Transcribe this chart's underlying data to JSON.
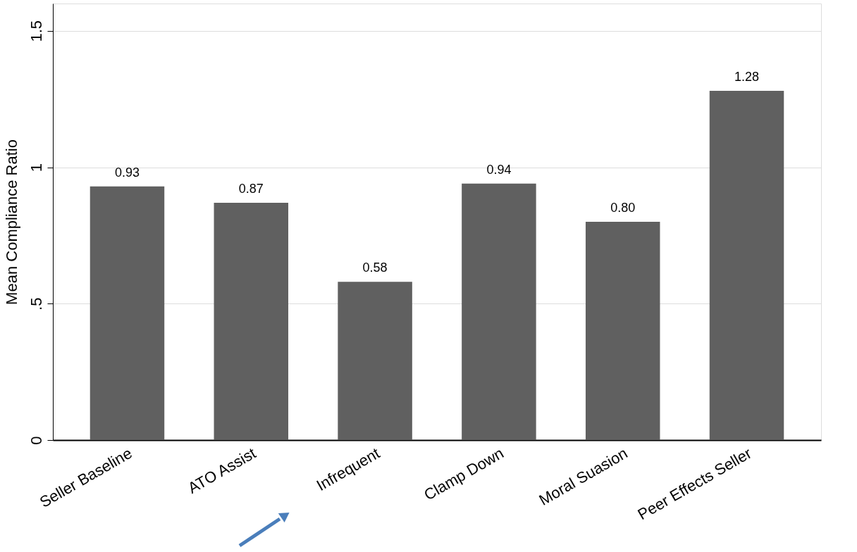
{
  "chart_data": {
    "type": "bar",
    "ylabel": "Mean Compliance Ratio",
    "categories": [
      "Seller Baseline",
      "ATO Assist",
      "Infrequent",
      "Clamp Down",
      "Moral Suasion",
      "Peer Effects Seller"
    ],
    "values": [
      0.93,
      0.87,
      0.58,
      0.94,
      0.8,
      1.28
    ],
    "value_labels": [
      "0.93",
      "0.87",
      "0.58",
      "0.94",
      "0.80",
      "1.28"
    ],
    "color": "#606060",
    "ylim": [
      0,
      1.6
    ],
    "yticks": [
      0,
      {
        "value": 0.5,
        "label": ".5"
      },
      1,
      1.5
    ],
    "grid": "y"
  }
}
